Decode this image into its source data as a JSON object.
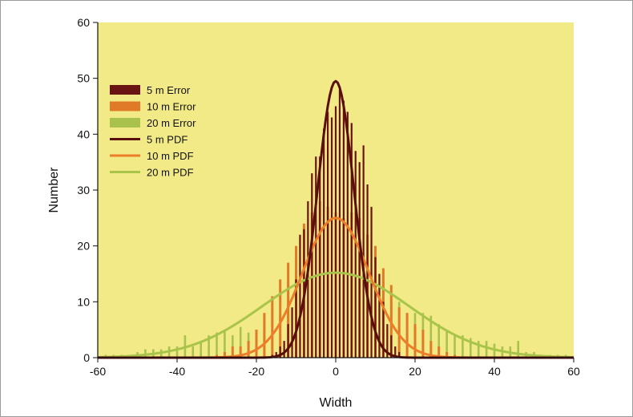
{
  "chart_data": {
    "type": "bar",
    "title": "",
    "xlabel": "Width",
    "ylabel": "Number",
    "xlim": [
      -60,
      60
    ],
    "ylim": [
      0,
      60
    ],
    "xticks": [
      -60,
      -40,
      -20,
      0,
      20,
      40,
      60
    ],
    "yticks": [
      0,
      10,
      20,
      30,
      40,
      50,
      60
    ],
    "grid": false,
    "legend_position": "top-left",
    "colors": {
      "plot_background": "#f2ea86",
      "error_5m": "#6b1414",
      "error_10m": "#e07a28",
      "error_20m": "#a9c24e",
      "pdf_5m": "#5a0f0f",
      "pdf_10m": "#ee7d2a",
      "pdf_20m": "#a8c44a"
    },
    "series": [
      {
        "name": "20 m Error",
        "kind": "bar",
        "x": [
          -58,
          -56,
          -54,
          -52,
          -50,
          -48,
          -46,
          -44,
          -42,
          -40,
          -38,
          -36,
          -34,
          -32,
          -30,
          -28,
          -26,
          -24,
          -22,
          -20,
          -18,
          -16,
          -14,
          -12,
          -10,
          -8,
          -6,
          -4,
          -2,
          0,
          2,
          4,
          6,
          8,
          10,
          12,
          14,
          16,
          18,
          20,
          22,
          24,
          26,
          28,
          30,
          32,
          34,
          36,
          38,
          40,
          42,
          44,
          46,
          48,
          50,
          52,
          54,
          56,
          58
        ],
        "values": [
          0.5,
          0.5,
          0.5,
          0.5,
          1,
          1.5,
          1.5,
          1.5,
          2,
          2,
          4,
          2,
          3,
          4,
          4.5,
          5,
          4,
          5.5,
          4.5,
          5,
          6,
          9,
          8,
          13,
          14,
          12,
          11,
          13,
          14,
          15,
          14,
          15.5,
          14,
          13,
          12,
          12,
          10,
          10,
          8,
          8,
          8,
          7.5,
          6,
          5,
          4,
          4,
          3.5,
          3,
          3,
          2.5,
          2,
          2,
          3,
          1,
          1,
          0.5,
          0.5,
          0.5,
          0.5
        ]
      },
      {
        "name": "10 m Error",
        "kind": "bar",
        "x": [
          -30,
          -28,
          -26,
          -24,
          -22,
          -20,
          -18,
          -16,
          -14,
          -12,
          -10,
          -8,
          -6,
          -4,
          -2,
          0,
          2,
          4,
          6,
          8,
          10,
          12,
          14,
          16,
          18,
          20,
          22,
          24,
          26,
          28,
          30
        ],
        "values": [
          0.5,
          1,
          2,
          2,
          3,
          5,
          8,
          11,
          14,
          17,
          20,
          24,
          26,
          28,
          27,
          26,
          25,
          26,
          25,
          22,
          20,
          16,
          13,
          9,
          8,
          6,
          5,
          3,
          2,
          1,
          0.5
        ]
      },
      {
        "name": "5 m Error",
        "kind": "bar",
        "x": [
          -16,
          -15,
          -14,
          -13,
          -12,
          -11,
          -10,
          -9,
          -8,
          -7,
          -6,
          -5,
          -4,
          -3,
          -2,
          -1,
          0,
          1,
          2,
          3,
          4,
          5,
          6,
          7,
          8,
          9,
          10,
          11,
          12,
          13,
          14,
          15,
          16
        ],
        "values": [
          0.5,
          1,
          2,
          3,
          6,
          9,
          14,
          22,
          23,
          28,
          33,
          36,
          36,
          41,
          44,
          43,
          45,
          48,
          46,
          44,
          42,
          37,
          35,
          38,
          31,
          27,
          18,
          15,
          10,
          6,
          4,
          2,
          1
        ]
      },
      {
        "name": "5 m PDF",
        "kind": "line",
        "mu": 0,
        "sigma": 4.6,
        "peak": 49.5
      },
      {
        "name": "10 m PDF",
        "kind": "line",
        "mu": 0,
        "sigma": 8.4,
        "peak": 25
      },
      {
        "name": "20 m PDF",
        "kind": "line",
        "mu": 0,
        "sigma": 18.5,
        "peak": 15.2
      }
    ]
  }
}
